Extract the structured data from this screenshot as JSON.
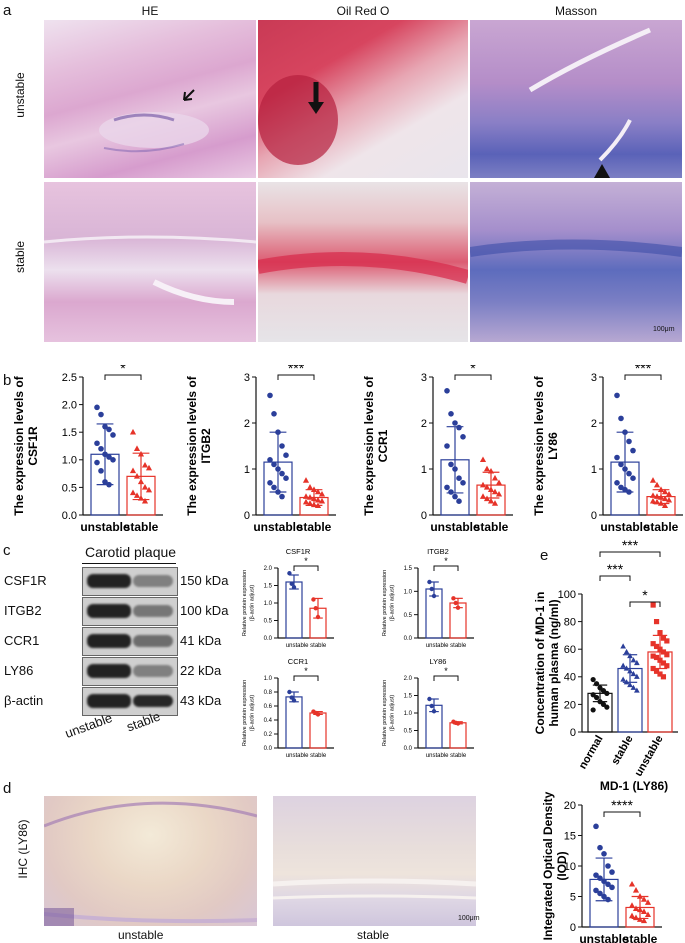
{
  "panel_a": {
    "letter": "a",
    "columns": [
      "HE",
      "Oil Red O",
      "Masson"
    ],
    "rows": [
      "unstable",
      "stable"
    ],
    "scalebar": "100μm"
  },
  "panel_b": {
    "letter": "b",
    "plots": [
      {
        "gene": "CSF1R",
        "ylabel": "The expression levels of CSF1R",
        "ymax": 2.5,
        "ticks": [
          "0.0",
          "0.5",
          "1.0",
          "1.5",
          "2.0",
          "2.5"
        ],
        "sig": "*",
        "groups": [
          "unstable",
          "stable"
        ],
        "means": [
          1.1,
          0.7
        ],
        "sd": [
          0.55,
          0.42
        ],
        "unstable": [
          1.95,
          1.82,
          1.6,
          1.55,
          1.45,
          1.3,
          1.2,
          1.1,
          1.05,
          1.0,
          0.95,
          0.8,
          0.6,
          0.55
        ],
        "stable": [
          1.5,
          1.2,
          1.1,
          0.9,
          0.85,
          0.8,
          0.7,
          0.6,
          0.5,
          0.45,
          0.4,
          0.35,
          0.3,
          0.25
        ]
      },
      {
        "gene": "ITGB2",
        "ylabel": "The expression levels of ITGB2",
        "ymax": 3,
        "ticks": [
          "0",
          "1",
          "2",
          "3"
        ],
        "sig": "***",
        "groups": [
          "unstable",
          "stable"
        ],
        "means": [
          1.15,
          0.38
        ],
        "sd": [
          0.65,
          0.17
        ],
        "unstable": [
          2.6,
          2.2,
          1.8,
          1.5,
          1.3,
          1.2,
          1.1,
          1.0,
          0.9,
          0.8,
          0.7,
          0.6,
          0.5,
          0.4
        ],
        "stable": [
          0.75,
          0.6,
          0.55,
          0.5,
          0.45,
          0.4,
          0.38,
          0.35,
          0.32,
          0.3,
          0.28,
          0.25,
          0.22,
          0.2
        ]
      },
      {
        "gene": "CCR1",
        "ylabel": "The expression levels of CCR1",
        "ymax": 3,
        "ticks": [
          "0",
          "1",
          "2",
          "3"
        ],
        "sig": "*",
        "groups": [
          "unstable",
          "stable"
        ],
        "means": [
          1.2,
          0.65
        ],
        "sd": [
          0.72,
          0.28
        ],
        "unstable": [
          2.7,
          2.2,
          2.0,
          1.9,
          1.7,
          1.5,
          1.1,
          1.0,
          0.8,
          0.7,
          0.6,
          0.5,
          0.4,
          0.3
        ],
        "stable": [
          1.2,
          1.0,
          0.95,
          0.8,
          0.7,
          0.65,
          0.6,
          0.55,
          0.5,
          0.45,
          0.4,
          0.35,
          0.3,
          0.25
        ]
      },
      {
        "gene": "LY86",
        "ylabel": "The expression levels of LY86",
        "ymax": 3,
        "ticks": [
          "0",
          "1",
          "2",
          "3"
        ],
        "sig": "***",
        "groups": [
          "unstable",
          "stable"
        ],
        "means": [
          1.15,
          0.4
        ],
        "sd": [
          0.65,
          0.15
        ],
        "unstable": [
          2.6,
          2.1,
          1.8,
          1.6,
          1.4,
          1.25,
          1.1,
          1.0,
          0.9,
          0.8,
          0.7,
          0.6,
          0.55,
          0.5
        ],
        "stable": [
          0.75,
          0.65,
          0.55,
          0.5,
          0.45,
          0.42,
          0.4,
          0.38,
          0.35,
          0.32,
          0.3,
          0.28,
          0.25,
          0.2
        ]
      }
    ]
  },
  "panel_c": {
    "letter": "c",
    "header": "Carotid plaque",
    "lanes": [
      "unstable",
      "stable"
    ],
    "blots": [
      {
        "name": "CSF1R",
        "kda": "150 kDa"
      },
      {
        "name": "ITGB2",
        "kda": "100 kDa"
      },
      {
        "name": "CCR1",
        "kda": "41 kDa"
      },
      {
        "name": "LY86",
        "kda": "22 kDa"
      },
      {
        "name": "β-actin",
        "kda": "43 kDa"
      }
    ],
    "quant": [
      {
        "title": "CSF1R",
        "ylabel": "Relative protein expression (β-actin adjust)",
        "ticks": [
          "0.0",
          "0.5",
          "1.0",
          "1.5",
          "2.0"
        ],
        "ymax": 2.0,
        "means": [
          1.6,
          0.85
        ],
        "sd": [
          0.2,
          0.28
        ],
        "sig": "*",
        "unstable": [
          1.85,
          1.55,
          1.45
        ],
        "stable": [
          1.1,
          0.85,
          0.6
        ]
      },
      {
        "title": "ITGB2",
        "ylabel": "Relative protein expression (β-actin adjust)",
        "ticks": [
          "0.0",
          "0.5",
          "1.0",
          "1.5"
        ],
        "ymax": 1.5,
        "means": [
          1.05,
          0.75
        ],
        "sd": [
          0.15,
          0.1
        ],
        "sig": "*",
        "unstable": [
          1.2,
          1.05,
          0.9
        ],
        "stable": [
          0.85,
          0.75,
          0.65
        ]
      },
      {
        "title": "CCR1",
        "ylabel": "Relative protein expression (β-actin adjust)",
        "ticks": [
          "0.0",
          "0.2",
          "0.4",
          "0.6",
          "0.8",
          "1.0"
        ],
        "ymax": 1.0,
        "means": [
          0.73,
          0.5
        ],
        "sd": [
          0.07,
          0.02
        ],
        "sig": "*",
        "unstable": [
          0.8,
          0.72,
          0.68
        ],
        "stable": [
          0.52,
          0.5,
          0.48
        ]
      },
      {
        "title": "LY86",
        "ylabel": "Relative protein expression (β-actin adjust)",
        "ticks": [
          "0.0",
          "0.5",
          "1.0",
          "1.5",
          "2.0"
        ],
        "ymax": 2.0,
        "means": [
          1.22,
          0.72
        ],
        "sd": [
          0.18,
          0.03
        ],
        "sig": "*",
        "unstable": [
          1.4,
          1.2,
          1.05
        ],
        "stable": [
          0.75,
          0.72,
          0.7
        ]
      }
    ],
    "xcats": "unstable stable"
  },
  "panel_e": {
    "letter": "e",
    "ylabel": "Concentration of MD-1 in human plasma (ng/ml)",
    "ticks": [
      "0",
      "20",
      "40",
      "60",
      "80",
      "100"
    ],
    "ymax": 100,
    "groups": [
      "normal",
      "stable",
      "unstable"
    ],
    "means": [
      28,
      46,
      58
    ],
    "sd": [
      6,
      10,
      12
    ],
    "sigs": [
      "***",
      "***",
      "*"
    ],
    "normal": [
      38,
      35,
      32,
      30,
      28,
      27,
      25,
      22,
      20,
      18,
      16
    ],
    "stable": [
      62,
      58,
      55,
      52,
      50,
      48,
      46,
      44,
      42,
      40,
      38,
      36,
      34,
      32,
      30
    ],
    "unstable": [
      92,
      80,
      72,
      68,
      66,
      64,
      62,
      60,
      58,
      56,
      55,
      54,
      52,
      50,
      48,
      46,
      44,
      42,
      40
    ]
  },
  "panel_d": {
    "letter": "d",
    "rowlabel": "IHC (LY86)",
    "captions": [
      "unstable",
      "stable"
    ],
    "scalebar": "100μm",
    "chart": {
      "title": "MD-1 (LY86)",
      "ylabel": "Integrated Optical Density (IOD)",
      "ticks": [
        "0",
        "5",
        "10",
        "15",
        "20"
      ],
      "ymax": 20,
      "groups": [
        "unstable",
        "stable"
      ],
      "means": [
        7.8,
        3.2
      ],
      "sd": [
        3.5,
        1.8
      ],
      "sig": "****",
      "unstable": [
        16.5,
        13,
        12,
        10,
        9,
        8.5,
        8,
        7.5,
        7,
        6.5,
        6,
        5.5,
        5,
        4.5
      ],
      "stable": [
        7,
        6,
        5,
        4.5,
        4,
        3.5,
        3,
        2.8,
        2.5,
        2,
        1.8,
        1.5,
        1.2,
        1
      ]
    }
  },
  "colors": {
    "blue": "#2b3f9a",
    "red": "#e63329",
    "he": "#d9a6cf",
    "oil": "#d93c5a",
    "masson": "#8a7fc6"
  }
}
